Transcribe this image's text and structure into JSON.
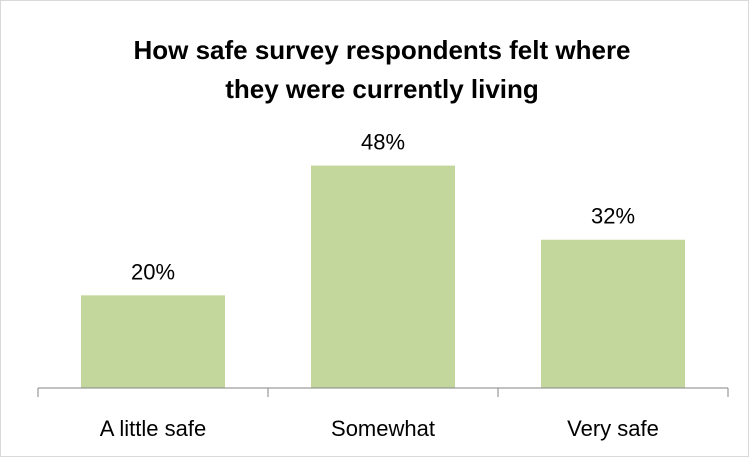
{
  "chart_data": {
    "type": "bar",
    "title_lines": [
      "How safe survey respondents felt where",
      "they were currently living"
    ],
    "categories": [
      "A little safe",
      "Somewhat",
      "Very safe"
    ],
    "values": [
      20,
      48,
      32
    ],
    "data_labels": [
      "20%",
      "48%",
      "32%"
    ],
    "ylim": [
      0,
      60
    ],
    "grid": false,
    "legend": "none",
    "colors": {
      "bar": "#c3d69b",
      "axis": "#868686",
      "border": "#d9d9d9"
    }
  }
}
